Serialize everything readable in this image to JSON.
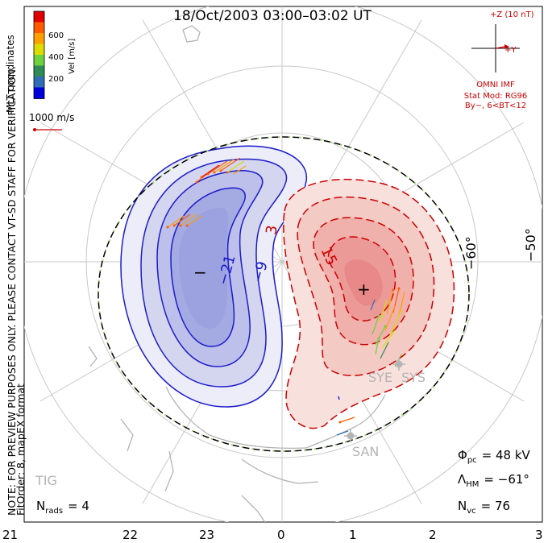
{
  "title": "18/Oct/2003 03:00–03:02 UT",
  "side_note_1": "NOTE: FOR PREVIEW PURPOSES ONLY. PLEASE CONTACT VT-SD STAFF FOR VERIFICATION.",
  "side_note_2": "FitOrder: 8, mapEX format",
  "coord_label": "MLT coordinates",
  "color_scale": {
    "label": "Vel [m/s]",
    "ticks": [
      "600",
      "400",
      "200"
    ],
    "colors": [
      "#e00000",
      "#ff5a00",
      "#ffa000",
      "#dcdc00",
      "#6ed23c",
      "#2e8b57",
      "#2f6eb4",
      "#0000dc"
    ]
  },
  "vector_scale_label": "1000 m/s",
  "imf": {
    "axis_z": "+Z (10 nT)",
    "axis_y": "+Y",
    "source": "OMNI IMF",
    "model": "Stat Mod: RG96",
    "condition": "By−, 6<BT<12"
  },
  "lat_labels": [
    "−60°",
    "−50°"
  ],
  "contour_labels": {
    "neg": [
      "−21",
      "−9"
    ],
    "pos": [
      "3",
      "15"
    ],
    "min_marker": "−",
    "max_marker": "+"
  },
  "radar_labels": [
    "SYE",
    "SYS",
    "SAN",
    "TIG"
  ],
  "stats": {
    "phi_sym": "Φ",
    "phi_sub": "pc",
    "phi_value": "= 48 kV",
    "lambda_sym": "Λ",
    "lambda_sub": "HM",
    "lambda_value": "= −61°",
    "nvc_sym": "N",
    "nvc_sub": "vc",
    "nvc_value": "= 76",
    "nrads_sym": "N",
    "nrads_sub": "rads",
    "nrads_value": "= 4"
  },
  "mlt_axis": [
    "21",
    "22",
    "23",
    "0",
    "1",
    "2",
    "3"
  ]
}
